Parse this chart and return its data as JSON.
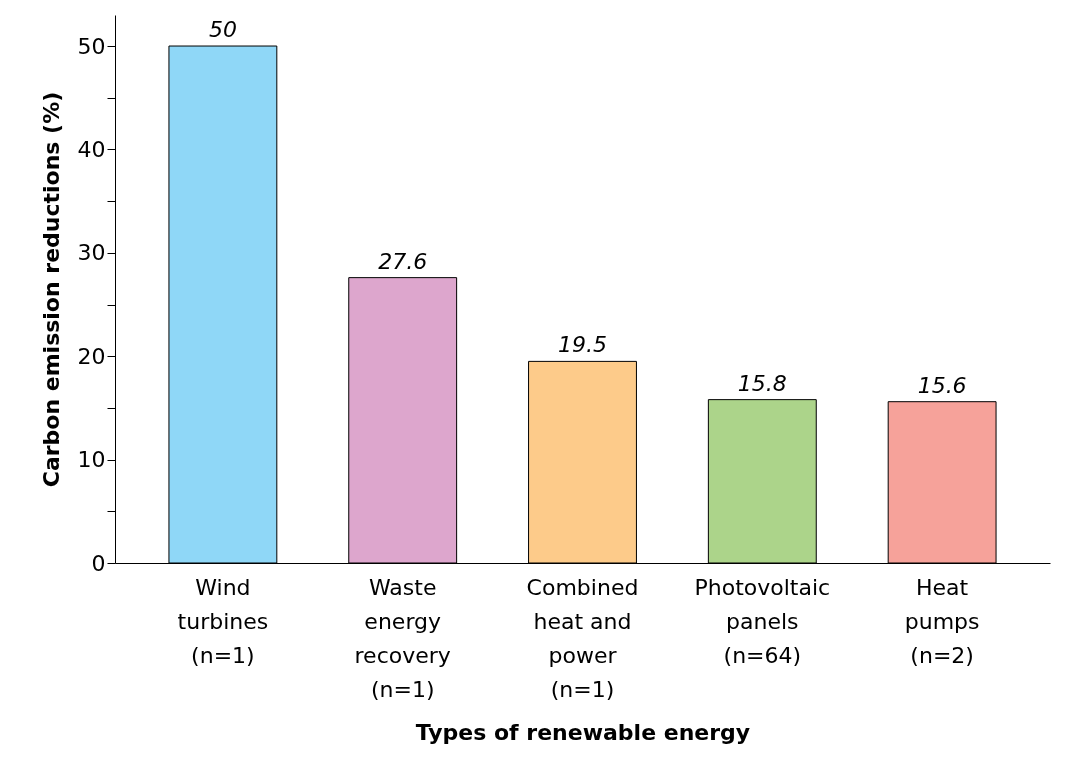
{
  "chart_data": {
    "type": "bar",
    "xlabel": "Types of renewable energy",
    "ylabel": "Carbon emission reductions (%)",
    "categories": [
      "Wind\nturbines\n(n=1)",
      "Waste\nenergy\nrecovery\n(n=1)",
      "Combined\nheat and\npower\n(n=1)",
      "Photovoltaic\npanels\n(n=64)",
      "Heat\npumps\n(n=2)"
    ],
    "values": [
      50,
      27.6,
      19.5,
      15.8,
      15.6
    ],
    "colors": [
      "#8fd7f7",
      "#dda6cd",
      "#fdcb8a",
      "#acd48a",
      "#f6a29a"
    ],
    "ylim": [
      0,
      53
    ],
    "yticks": [
      0,
      {
        "value": 5,
        "label": null
      },
      10,
      {
        "value": 15,
        "label": null
      },
      20,
      {
        "value": 25,
        "label": null
      },
      30,
      {
        "value": 35,
        "label": null
      },
      40,
      {
        "value": 45,
        "label": null
      },
      50
    ],
    "data_labels": true,
    "grid": false
  }
}
